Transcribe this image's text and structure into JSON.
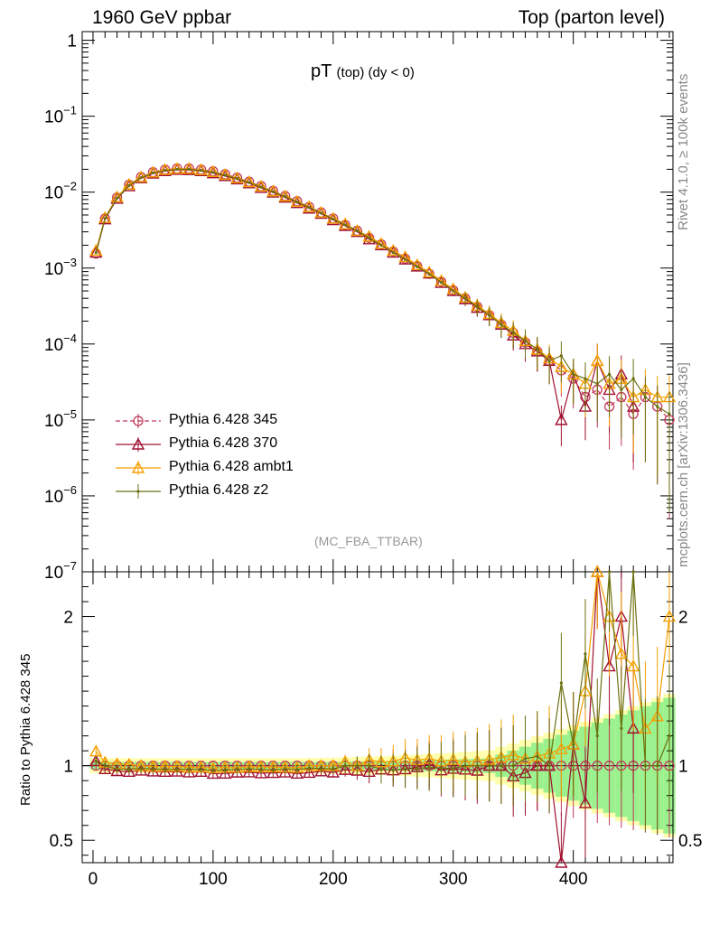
{
  "header": {
    "left": "1960 GeV ppbar",
    "right": "Top (parton level)"
  },
  "side_labels": {
    "rivet": "Rivet 4.1.0, ≥ 100k events",
    "mcplots": "mcplots.cern.ch [arXiv:1306.3436]"
  },
  "analysis_tag": "(MC_FBA_TTBAR)",
  "chart_data": {
    "type": "line",
    "title_main": "pT",
    "title_sub": "(top)  (dy < 0)",
    "xlabel": "",
    "ylabel_ratio": "Ratio to Pythia 6.428 345",
    "x_range": [
      -9,
      483
    ],
    "y_range_log": [
      1e-07,
      1.3
    ],
    "ratio_range": [
      0.35,
      2.3
    ],
    "x_ticks": [
      0,
      100,
      200,
      300,
      400
    ],
    "x_tick_labels": [
      "0",
      "100",
      "200",
      "300",
      "400"
    ],
    "main_ticks": [
      1,
      0.1,
      0.01,
      0.001,
      0.0001,
      1e-05,
      1e-06,
      1e-07
    ],
    "main_tick_labels": [
      {
        "base": "1",
        "exp": ""
      },
      {
        "base": "10",
        "exp": "−1"
      },
      {
        "base": "10",
        "exp": "−2"
      },
      {
        "base": "10",
        "exp": "−3"
      },
      {
        "base": "10",
        "exp": "−4"
      },
      {
        "base": "10",
        "exp": "−5"
      },
      {
        "base": "10",
        "exp": "−6"
      },
      {
        "base": "10",
        "exp": "−7"
      }
    ],
    "ratio_ticks": [
      0.5,
      1,
      2
    ],
    "ratio_tick_labels": [
      "0.5",
      "1",
      "2"
    ],
    "legend": [
      {
        "label": "Pythia 6.428 345",
        "color": "#c2385a",
        "marker": "circle",
        "dash": true
      },
      {
        "label": "Pythia 6.428 370",
        "color": "#a01030",
        "marker": "triangle",
        "dash": false
      },
      {
        "label": "Pythia 6.428 ambt1",
        "color": "#f5a000",
        "marker": "triangle",
        "dash": false
      },
      {
        "label": "Pythia 6.428 z2",
        "color": "#6b7010",
        "marker": "dot",
        "dash": false
      }
    ],
    "series": [
      {
        "name": "Pythia 6.428 345",
        "color": "#c2385a",
        "x": [
          2.5,
          10,
          20,
          30,
          40,
          50,
          60,
          70,
          80,
          90,
          100,
          110,
          120,
          130,
          140,
          150,
          160,
          170,
          180,
          190,
          200,
          210,
          220,
          230,
          240,
          250,
          260,
          270,
          280,
          290,
          300,
          310,
          320,
          330,
          340,
          350,
          360,
          370,
          380,
          390,
          400,
          410,
          420,
          430,
          440,
          450,
          460,
          470,
          480
        ],
        "y": [
          0.00155,
          0.0045,
          0.0085,
          0.0125,
          0.0158,
          0.0183,
          0.0198,
          0.0205,
          0.0205,
          0.0198,
          0.0188,
          0.0172,
          0.0155,
          0.0137,
          0.012,
          0.0104,
          0.0089,
          0.0076,
          0.0064,
          0.0054,
          0.0045,
          0.0037,
          0.0031,
          0.0025,
          0.00205,
          0.00165,
          0.00133,
          0.00106,
          0.00084,
          0.00066,
          0.00051,
          0.0004,
          0.00031,
          0.00024,
          0.00018,
          0.00014,
          0.000105,
          8e-05,
          6e-05,
          4.5e-05,
          3.5e-05,
          2e-05,
          2.5e-05,
          1.5e-05,
          2e-05,
          1.2e-05,
          2e-05,
          1.5e-05,
          1e-05
        ]
      },
      {
        "name": "Pythia 6.428 370",
        "color": "#a01030",
        "x": [
          2.5,
          10,
          20,
          30,
          40,
          50,
          60,
          70,
          80,
          90,
          100,
          110,
          120,
          130,
          140,
          150,
          160,
          170,
          180,
          190,
          200,
          210,
          220,
          230,
          240,
          250,
          260,
          270,
          280,
          290,
          300,
          310,
          320,
          330,
          340,
          350,
          360,
          370,
          380,
          390,
          400,
          410,
          420,
          430,
          440,
          450
        ],
        "y": [
          0.0016,
          0.0044,
          0.0082,
          0.012,
          0.0153,
          0.0176,
          0.019,
          0.0197,
          0.0196,
          0.019,
          0.0178,
          0.0163,
          0.0148,
          0.0131,
          0.0114,
          0.0099,
          0.0085,
          0.0072,
          0.0061,
          0.0052,
          0.0043,
          0.0036,
          0.003,
          0.0024,
          0.002,
          0.0016,
          0.0013,
          0.00105,
          0.00085,
          0.00064,
          0.0005,
          0.00039,
          0.0003,
          0.00024,
          0.00018,
          0.00013,
          0.0001,
          8e-05,
          6e-05,
          1e-05,
          4e-05,
          1.5e-05,
          6e-05,
          2.5e-05,
          4e-05,
          1.5e-05
        ]
      },
      {
        "name": "Pythia 6.428 ambt1",
        "color": "#f5a000",
        "x": [
          2.5,
          10,
          20,
          30,
          40,
          50,
          60,
          70,
          80,
          90,
          100,
          110,
          120,
          130,
          140,
          150,
          160,
          170,
          180,
          190,
          200,
          210,
          220,
          230,
          240,
          250,
          260,
          270,
          280,
          290,
          300,
          310,
          320,
          330,
          340,
          350,
          360,
          370,
          380,
          390,
          400,
          410,
          420,
          430,
          440,
          450,
          460,
          470,
          480
        ],
        "y": [
          0.0017,
          0.0046,
          0.0086,
          0.0126,
          0.0158,
          0.0182,
          0.0197,
          0.0204,
          0.0203,
          0.0196,
          0.0185,
          0.017,
          0.0153,
          0.0136,
          0.0119,
          0.0103,
          0.0088,
          0.0075,
          0.0064,
          0.0054,
          0.0045,
          0.0038,
          0.0031,
          0.0026,
          0.0021,
          0.0017,
          0.0014,
          0.0011,
          0.00088,
          0.00068,
          0.00053,
          0.00041,
          0.00032,
          0.00025,
          0.00019,
          0.00015,
          0.00011,
          8.5e-05,
          6.5e-05,
          5e-05,
          4e-05,
          3e-05,
          6e-05,
          3e-05,
          3.5e-05,
          2e-05,
          2.5e-05,
          2e-05,
          2e-05
        ]
      },
      {
        "name": "Pythia 6.428 z2",
        "color": "#6b7010",
        "x": [
          2.5,
          10,
          20,
          30,
          40,
          50,
          60,
          70,
          80,
          90,
          100,
          110,
          120,
          130,
          140,
          150,
          160,
          170,
          180,
          190,
          200,
          210,
          220,
          230,
          240,
          250,
          260,
          270,
          280,
          290,
          300,
          310,
          320,
          330,
          340,
          350,
          360,
          370,
          380,
          390,
          400,
          410,
          420,
          430,
          440,
          450,
          460,
          470,
          480
        ],
        "y": [
          0.0016,
          0.0045,
          0.0083,
          0.0122,
          0.0155,
          0.0179,
          0.0193,
          0.02,
          0.02,
          0.0193,
          0.0182,
          0.0167,
          0.0151,
          0.0134,
          0.0117,
          0.0101,
          0.0087,
          0.0074,
          0.0063,
          0.0053,
          0.0044,
          0.0037,
          0.0031,
          0.0025,
          0.002,
          0.0016,
          0.0013,
          0.00104,
          0.00083,
          0.00065,
          0.0005,
          0.0004,
          0.00031,
          0.00024,
          0.00018,
          0.00014,
          0.00011,
          8.5e-05,
          6e-05,
          7e-05,
          4e-05,
          3.5e-05,
          3e-05,
          4e-05,
          2.5e-05,
          3.5e-05,
          2e-05,
          1.5e-05,
          1.2e-05
        ]
      }
    ]
  }
}
